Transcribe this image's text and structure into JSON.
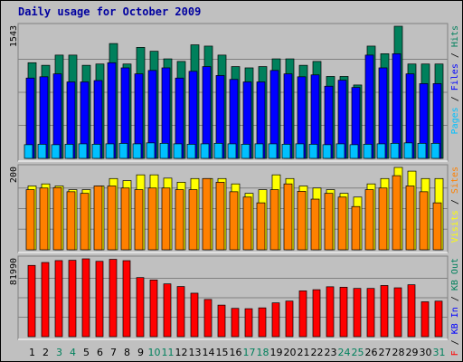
{
  "chart_data": {
    "type": "bar",
    "title": "Daily usage for October 2009",
    "colors": {
      "title": "#0000a0",
      "hits": "#00805c",
      "files": "#0000ff",
      "pages": "#00c0ff",
      "visits": "#ffff00",
      "sites": "#ff8000",
      "kbytes": "#ff0000",
      "panel_bg": "#c0c0c0",
      "plot_bg": "#c0c0c0",
      "weekend_day_label": "#00805c",
      "weekday_day_label": "#000000",
      "legend_in": "#0000ff",
      "legend_out": "#00805c",
      "legend_f": "#ff0000"
    },
    "categories": [
      "1",
      "2",
      "3",
      "4",
      "5",
      "6",
      "7",
      "8",
      "9",
      "10",
      "11",
      "12",
      "13",
      "14",
      "15",
      "16",
      "17",
      "18",
      "19",
      "20",
      "21",
      "22",
      "23",
      "24",
      "25",
      "26",
      "27",
      "28",
      "29",
      "30",
      "31"
    ],
    "weekend_days": [
      3,
      4,
      10,
      11,
      17,
      18,
      24,
      25,
      31
    ],
    "panels": [
      {
        "id": "hits",
        "ymax_label": "1543",
        "legend": [
          {
            "text": "Pages",
            "color": "#00c0ff"
          },
          {
            "text": " / ",
            "color": "#000000"
          },
          {
            "text": "Files",
            "color": "#0000ff"
          },
          {
            "text": " / ",
            "color": "#000000"
          },
          {
            "text": "Hits",
            "color": "#00805c"
          }
        ],
        "ylim": [
          0,
          1543
        ],
        "series": [
          {
            "name": "Hits",
            "color": "#00805c",
            "values": [
              1117,
              1087,
              1206,
              1206,
              1087,
              1102,
              1341,
              1102,
              1296,
              1251,
              1162,
              1132,
              1326,
              1311,
              1206,
              1072,
              1057,
              1072,
              1162,
              1162,
              1087,
              1132,
              957,
              957,
              857,
              1311,
              1222,
              1543,
              1102,
              1102,
              1102
            ]
          },
          {
            "name": "Files",
            "color": "#0000ff",
            "values": [
              938,
              953,
              987,
              893,
              893,
              909,
              1117,
              1057,
              987,
              1027,
              1057,
              938,
              1017,
              1072,
              968,
              922,
              893,
              893,
              1027,
              987,
              953,
              975,
              843,
              913,
              828,
              1206,
              1057,
              1222,
              987,
              873,
              873
            ]
          },
          {
            "name": "Pages",
            "color": "#00c0ff",
            "values": [
              160,
              165,
              160,
              165,
              170,
              165,
              170,
              175,
              170,
              181,
              176,
              170,
              165,
              170,
              176,
              170,
              165,
              170,
              170,
              165,
              170,
              165,
              160,
              170,
              160,
              165,
              170,
              176,
              181,
              176,
              176
            ]
          }
        ]
      },
      {
        "id": "visits",
        "ymax_label": "200",
        "legend": [
          {
            "text": "Visits",
            "color": "#ffff00"
          },
          {
            "text": " / ",
            "color": "#000000"
          },
          {
            "text": "Sites",
            "color": "#ff8000"
          }
        ],
        "ylim": [
          0,
          200
        ],
        "series": [
          {
            "name": "Visits",
            "color": "#ffff00",
            "values": [
              155,
              160,
              155,
              146,
              146,
              155,
              173,
              168,
              182,
              182,
              174,
              164,
              173,
              173,
              173,
              160,
              137,
              146,
              182,
              173,
              155,
              150,
              146,
              137,
              128,
              160,
              173,
              200,
              191,
              173,
              173
            ]
          },
          {
            "name": "Sites",
            "color": "#ff8000",
            "values": [
              146,
              150,
              151,
              141,
              137,
              155,
              155,
              150,
              146,
              150,
              150,
              146,
              146,
              173,
              164,
              141,
              128,
              114,
              146,
              160,
              142,
              123,
              137,
              128,
              105,
              146,
              150,
              180,
              155,
              141,
              114
            ]
          }
        ]
      },
      {
        "id": "kbytes",
        "ymax_label": "81990",
        "legend": [
          {
            "text": "KB F",
            "color": "#ff0000"
          },
          {
            "text": " / ",
            "color": "#000000"
          },
          {
            "text": "KB In",
            "color": "#0000ff"
          },
          {
            "text": " / ",
            "color": "#000000"
          },
          {
            "text": "KB Out",
            "color": "#00805c"
          }
        ],
        "ylim": [
          0,
          81990
        ],
        "series": [
          {
            "name": "KB F",
            "color": "#ff0000",
            "values": [
              75066,
              78148,
              80152,
              80460,
              81990,
              79381,
              81450,
              80075,
              62272,
              59728,
              55600,
              52840,
              45800,
              39200,
              33250,
              29825,
              29460,
              30340,
              35600,
              37480,
              48240,
              49475,
              52570,
              52070,
              50830,
              50830,
              53900,
              51465,
              54670,
              36740,
              37425
            ]
          }
        ]
      }
    ]
  }
}
